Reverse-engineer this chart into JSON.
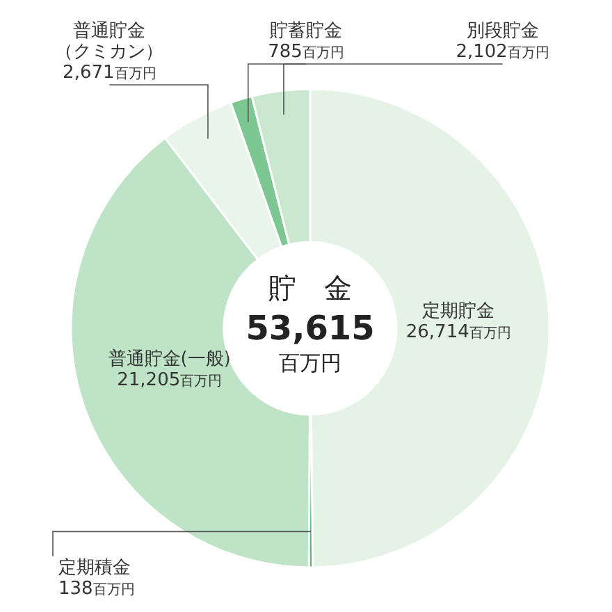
{
  "chart_data": {
    "type": "donut",
    "title": "貯　金",
    "annotations": [
      "53,615",
      "百万円"
    ],
    "categories": [
      "定期貯金",
      "定期積金",
      "普通貯金(一般)",
      "普通貯金（クミカン）",
      "貯蓄貯金",
      "別段貯金"
    ],
    "values": [
      26714,
      138,
      21205,
      2671,
      785,
      2102
    ],
    "value_labels": [
      "26,714百万円",
      "138百万円",
      "21,205百万円",
      "2,671百万円",
      "785百万円",
      "2,102百万円"
    ],
    "colors": [
      "#e4f3e6",
      "#5fb57a",
      "#bfe3c6",
      "#e9f5ea",
      "#7dc793",
      "#c9e8cf"
    ]
  }
}
